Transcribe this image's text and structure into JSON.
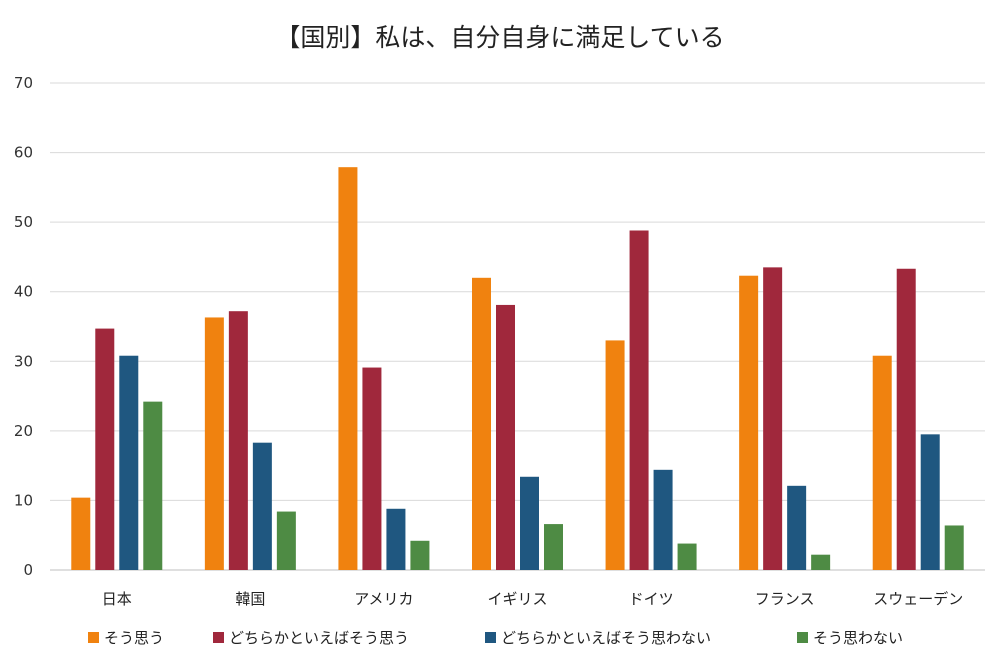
{
  "chart_data": {
    "type": "bar",
    "title": "【国別】私は、自分自身に満足している",
    "xlabel": "",
    "ylabel": "",
    "ylim": [
      0,
      70
    ],
    "yticks": [
      0,
      10,
      20,
      30,
      40,
      50,
      60,
      70
    ],
    "grid": true,
    "legend_position": "bottom",
    "categories": [
      "日本",
      "韓国",
      "アメリカ",
      "イギリス",
      "ドイツ",
      "フランス",
      "スウェーデン"
    ],
    "series": [
      {
        "name": "そう思う",
        "color": "#f0820f",
        "values": [
          10.4,
          36.3,
          57.9,
          42.0,
          33.0,
          42.3,
          30.8
        ]
      },
      {
        "name": "どちらかといえばそう思う",
        "color": "#a0283c",
        "values": [
          34.7,
          37.2,
          29.1,
          38.1,
          48.8,
          43.5,
          43.3
        ]
      },
      {
        "name": "どちらかといえばそう思わない",
        "color": "#1f5780",
        "values": [
          30.8,
          18.3,
          8.8,
          13.4,
          14.4,
          12.1,
          19.5
        ]
      },
      {
        "name": "そう思わない",
        "color": "#4e8b44",
        "values": [
          24.2,
          8.4,
          4.2,
          6.6,
          3.8,
          2.2,
          6.4
        ]
      }
    ]
  }
}
